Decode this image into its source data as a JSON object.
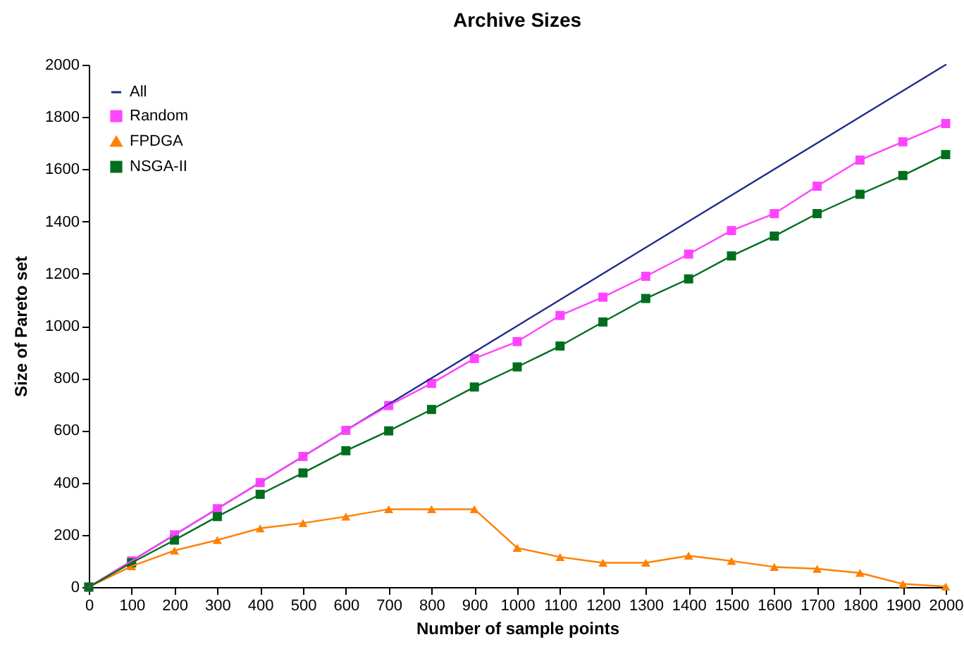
{
  "chart_data": {
    "type": "line",
    "title": "Archive Sizes",
    "xlabel": "Number of sample points",
    "ylabel": "Size of Pareto set",
    "x": [
      0,
      100,
      200,
      300,
      400,
      500,
      600,
      700,
      800,
      900,
      1000,
      1100,
      1200,
      1300,
      1400,
      1500,
      1600,
      1700,
      1800,
      1900,
      2000
    ],
    "series": [
      {
        "name": "All",
        "color": "#1f2a8c",
        "marker": "none",
        "x": [
          0,
          2000
        ],
        "values": [
          0,
          2000
        ]
      },
      {
        "name": "Random",
        "color": "#ff44ff",
        "marker": "square",
        "values": [
          0,
          100,
          200,
          300,
          400,
          500,
          600,
          695,
          780,
          875,
          940,
          1040,
          1110,
          1190,
          1275,
          1365,
          1430,
          1535,
          1635,
          1705,
          1775
        ]
      },
      {
        "name": "FPDGA",
        "color": "#ff8000",
        "marker": "triangle",
        "values": [
          0,
          80,
          140,
          180,
          225,
          245,
          270,
          298,
          298,
          298,
          150,
          115,
          93,
          93,
          120,
          100,
          77,
          70,
          54,
          12,
          2
        ]
      },
      {
        "name": "NSGA-II",
        "color": "#006e1e",
        "marker": "square",
        "values": [
          0,
          93,
          180,
          270,
          355,
          437,
          522,
          598,
          680,
          766,
          843,
          923,
          1015,
          1105,
          1180,
          1268,
          1344,
          1430,
          1504,
          1576,
          1656
        ]
      }
    ],
    "xlim": [
      0,
      2000
    ],
    "xticks": [
      0,
      100,
      200,
      300,
      400,
      500,
      600,
      700,
      800,
      900,
      1000,
      1100,
      1200,
      1300,
      1400,
      1500,
      1600,
      1700,
      1800,
      1900,
      2000
    ],
    "ylim": [
      0,
      2000
    ],
    "yticks": [
      0,
      200,
      400,
      600,
      800,
      1000,
      1200,
      1400,
      1600,
      1800,
      2000
    ],
    "grid": false,
    "legend": "top left"
  }
}
